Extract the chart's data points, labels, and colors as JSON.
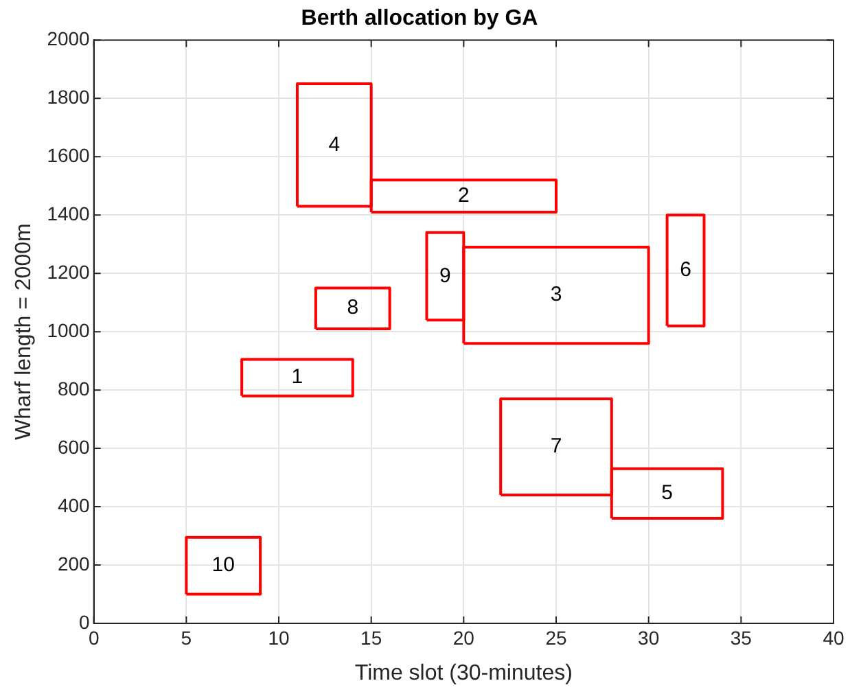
{
  "chart_data": {
    "type": "line",
    "title": "Berth allocation by GA",
    "xlabel": "Time slot (30-minutes)",
    "ylabel": "Wharf length = 2000m",
    "xlim": [
      0,
      40
    ],
    "xticks": [
      0,
      5,
      10,
      15,
      20,
      25,
      30,
      35,
      40
    ],
    "ylim": [
      0,
      2000
    ],
    "yticks": [
      0,
      200,
      400,
      600,
      800,
      1000,
      1200,
      1400,
      1600,
      1800,
      2000
    ],
    "grid": true,
    "legend": false,
    "marker": "none",
    "line_style": "solid",
    "series": [
      {
        "name": "1",
        "color": "#ff0000",
        "x": [
          8,
          8,
          14,
          14
        ],
        "values": [
          780,
          905,
          905,
          780
        ]
      },
      {
        "color": "#ff0000",
        "x": [
          8,
          14
        ],
        "values": [
          780,
          780
        ]
      },
      {
        "name": "2",
        "color": "#ff0000",
        "x": [
          15,
          15,
          25,
          25
        ],
        "values": [
          1410,
          1520,
          1520,
          1410
        ]
      },
      {
        "color": "#ff0000",
        "x": [
          15,
          25
        ],
        "values": [
          1410,
          1410
        ]
      },
      {
        "name": "3",
        "color": "#ff0000",
        "x": [
          20,
          20,
          30,
          30
        ],
        "values": [
          960,
          1290,
          1290,
          960
        ]
      },
      {
        "color": "#ff0000",
        "x": [
          20,
          30
        ],
        "values": [
          960,
          960
        ]
      },
      {
        "name": "4",
        "color": "#ff0000",
        "x": [
          11,
          11,
          15,
          15
        ],
        "values": [
          1430,
          1850,
          1850,
          1430
        ]
      },
      {
        "color": "#ff0000",
        "x": [
          11,
          15
        ],
        "values": [
          1430,
          1430
        ]
      },
      {
        "name": "5",
        "color": "#ff0000",
        "x": [
          28,
          28,
          34,
          34
        ],
        "values": [
          360,
          530,
          530,
          360
        ]
      },
      {
        "color": "#ff0000",
        "x": [
          28,
          34
        ],
        "values": [
          360,
          360
        ]
      },
      {
        "name": "6",
        "color": "#ff0000",
        "x": [
          31,
          31,
          33,
          33
        ],
        "values": [
          1020,
          1400,
          1400,
          1020
        ]
      },
      {
        "color": "#ff0000",
        "x": [
          31,
          33
        ],
        "values": [
          1020,
          1020
        ]
      },
      {
        "name": "7",
        "color": "#ff0000",
        "x": [
          22,
          22,
          28,
          28
        ],
        "values": [
          440,
          770,
          770,
          440
        ]
      },
      {
        "color": "#ff0000",
        "x": [
          22,
          28
        ],
        "values": [
          440,
          440
        ]
      },
      {
        "name": "8",
        "color": "#ff0000",
        "x": [
          12,
          12,
          16,
          16
        ],
        "values": [
          1010,
          1150,
          1150,
          1010
        ]
      },
      {
        "color": "#ff0000",
        "x": [
          12,
          16
        ],
        "values": [
          1010,
          1010
        ]
      },
      {
        "name": "9",
        "color": "#ff0000",
        "x": [
          18,
          18,
          20,
          20
        ],
        "values": [
          1040,
          1340,
          1340,
          1040
        ]
      },
      {
        "color": "#ff0000",
        "x": [
          18,
          20
        ],
        "values": [
          1040,
          1040
        ]
      },
      {
        "name": "10",
        "color": "#ff0000",
        "x": [
          5,
          5,
          9,
          9
        ],
        "values": [
          100,
          295,
          295,
          100
        ]
      },
      {
        "color": "#ff0000",
        "x": [
          5,
          9
        ],
        "values": [
          100,
          100
        ]
      }
    ]
  }
}
